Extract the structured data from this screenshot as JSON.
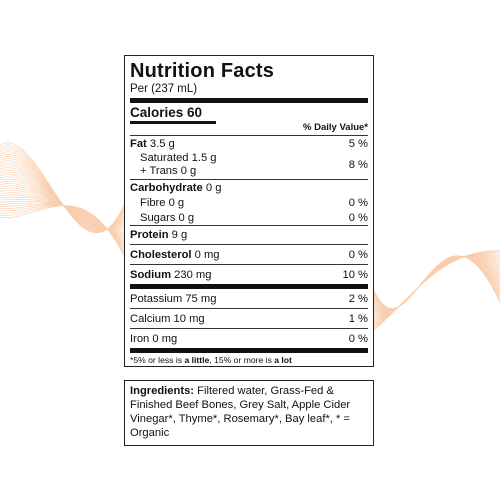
{
  "nutrition": {
    "title": "Nutrition Facts",
    "serving": "Per (237 mL)",
    "calories_label": "Calories",
    "calories_value": "60",
    "dv_header": "% Daily Value*",
    "fat": {
      "label": "Fat",
      "amount": "3.5 g",
      "dv": "5 %"
    },
    "saturated": {
      "label": "Saturated 1.5 g"
    },
    "trans": {
      "label": "+ Trans 0 g"
    },
    "sat_trans_dv": "8 %",
    "carb": {
      "label": "Carbohydrate",
      "amount": "0 g"
    },
    "fibre": {
      "label": "Fibre 0 g",
      "dv": "0 %"
    },
    "sugars": {
      "label": "Sugars 0 g",
      "dv": "0 %"
    },
    "protein": {
      "label": "Protein",
      "amount": "9 g"
    },
    "cholesterol": {
      "label": "Cholesterol",
      "amount": "0 mg",
      "dv": "0 %"
    },
    "sodium": {
      "label": "Sodium",
      "amount": "230 mg",
      "dv": "10 %"
    },
    "potassium": {
      "label": "Potassium 75 mg",
      "dv": "2 %"
    },
    "calcium": {
      "label": "Calcium 10 mg",
      "dv": "1 %"
    },
    "iron": {
      "label": "Iron 0 mg",
      "dv": "0 %"
    },
    "footnote": {
      "pre": "*5% or less is ",
      "little": "a little",
      "mid": ", 15% or more is ",
      "lot": "a lot"
    }
  },
  "ingredients": {
    "label": "Ingredients:",
    "text": "Filtered water, Grass-Fed & Finished Beef Bones, Grey Salt, Apple Cider Vinegar*, Thyme*, Rosemary*, Bay leaf*, * = Organic"
  },
  "colors": {
    "wave": "#f5a46a",
    "ink": "#111111"
  }
}
